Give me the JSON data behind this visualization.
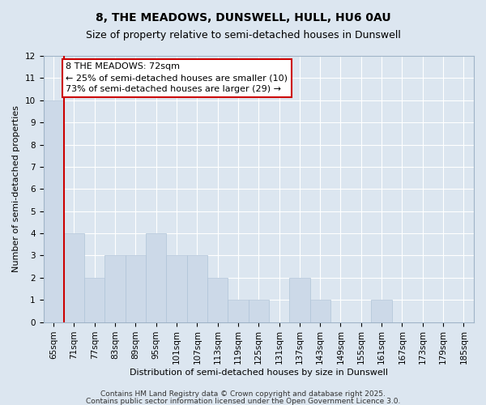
{
  "title": "8, THE MEADOWS, DUNSWELL, HULL, HU6 0AU",
  "subtitle": "Size of property relative to semi-detached houses in Dunswell",
  "xlabel": "Distribution of semi-detached houses by size in Dunswell",
  "ylabel": "Number of semi-detached properties",
  "categories": [
    "65sqm",
    "71sqm",
    "77sqm",
    "83sqm",
    "89sqm",
    "95sqm",
    "101sqm",
    "107sqm",
    "113sqm",
    "119sqm",
    "125sqm",
    "131sqm",
    "137sqm",
    "143sqm",
    "149sqm",
    "155sqm",
    "161sqm",
    "167sqm",
    "173sqm",
    "179sqm",
    "185sqm"
  ],
  "values": [
    10,
    4,
    2,
    3,
    3,
    4,
    3,
    3,
    2,
    1,
    1,
    0,
    2,
    1,
    0,
    0,
    1,
    0,
    0,
    0,
    0
  ],
  "bar_color": "#ccd9e8",
  "bar_edge_color": "#b0c4d8",
  "highlight_line_color": "#cc0000",
  "annotation_text": "8 THE MEADOWS: 72sqm\n← 25% of semi-detached houses are smaller (10)\n73% of semi-detached houses are larger (29) →",
  "annotation_box_color": "#ffffff",
  "annotation_box_edge": "#cc0000",
  "ylim": [
    0,
    12
  ],
  "yticks": [
    0,
    1,
    2,
    3,
    4,
    5,
    6,
    7,
    8,
    9,
    10,
    11,
    12
  ],
  "background_color": "#dce6f0",
  "plot_background": "#dce6f0",
  "footer_line1": "Contains HM Land Registry data © Crown copyright and database right 2025.",
  "footer_line2": "Contains public sector information licensed under the Open Government Licence 3.0.",
  "title_fontsize": 10,
  "subtitle_fontsize": 9,
  "axis_label_fontsize": 8,
  "tick_fontsize": 7.5,
  "annotation_fontsize": 8,
  "footer_fontsize": 6.5
}
